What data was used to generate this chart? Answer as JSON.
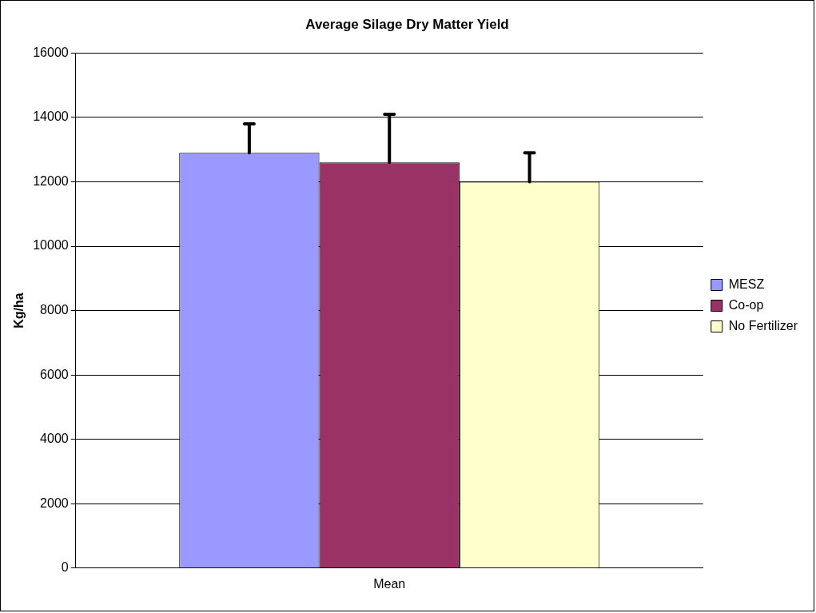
{
  "chart_data": {
    "type": "bar",
    "title": "Average Silage Dry Matter Yield",
    "ylabel": "Kg/ha",
    "categories": [
      "Mean"
    ],
    "series": [
      {
        "name": "MESZ",
        "color": "#9999ff",
        "values": [
          12900
        ],
        "errors": [
          [
            12900,
            13800
          ]
        ]
      },
      {
        "name": "Co-op",
        "color": "#993366",
        "values": [
          12600
        ],
        "errors": [
          [
            12600,
            14100
          ]
        ]
      },
      {
        "name": "No Fertilizer",
        "color": "#ffffcc",
        "values": [
          12000
        ],
        "errors": [
          [
            12000,
            12900
          ]
        ]
      }
    ],
    "ylim": [
      0,
      16000
    ],
    "yticks": [
      0,
      2000,
      4000,
      6000,
      8000,
      10000,
      12000,
      14000,
      16000
    ],
    "grid": "y",
    "legend": "right"
  }
}
